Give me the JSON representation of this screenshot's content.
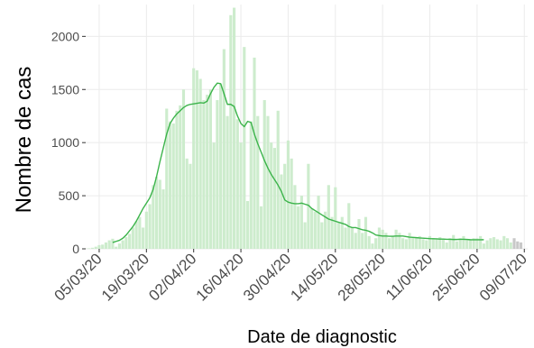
{
  "chart_data": {
    "type": "bar",
    "title": "",
    "xlabel": "Date de diagnostic",
    "ylabel": "Nombre de cas",
    "x_start": "2020-03-01",
    "x_end": "2020-07-10",
    "ylim": [
      0,
      2300
    ],
    "y_ticks": [
      0,
      500,
      1000,
      1500,
      2000
    ],
    "x_ticks": [
      "05/03/20",
      "19/03/20",
      "02/04/20",
      "16/04/20",
      "30/04/20",
      "14/05/20",
      "28/05/20",
      "11/06/20",
      "25/06/20",
      "09/07/20"
    ],
    "grid": true,
    "colors": {
      "bar": "#cdeccd",
      "bar_last": "#c8c8c8",
      "line": "#3cb44b",
      "grid": "#ebebeb",
      "axis_text": "#4d4d4d"
    },
    "series": [
      {
        "type": "bar",
        "x_start_date": "2020-03-01",
        "values": [
          3,
          5,
          10,
          20,
          35,
          40,
          60,
          80,
          95,
          20,
          50,
          80,
          110,
          140,
          200,
          260,
          300,
          200,
          350,
          420,
          600,
          680,
          650,
          560,
          1320,
          1200,
          1180,
          1300,
          1350,
          1500,
          850,
          800,
          1700,
          1680,
          1600,
          1400,
          1450,
          1500,
          1000,
          1400,
          1550,
          1880,
          1250,
          2200,
          2270,
          1220,
          1000,
          1900,
          450,
          1200,
          1800,
          1250,
          400,
          1400,
          1250,
          1000,
          950,
          1300,
          700,
          800,
          1020,
          850,
          600,
          400,
          500,
          250,
          800,
          380,
          350,
          500,
          250,
          350,
          600,
          300,
          580,
          250,
          300,
          200,
          430,
          200,
          150,
          280,
          150,
          300,
          120,
          50,
          100,
          200,
          180,
          150,
          100,
          120,
          180,
          150,
          100,
          90,
          150,
          110,
          100,
          120,
          90,
          80,
          120,
          100,
          90,
          110,
          95,
          60,
          100,
          130,
          70,
          100,
          120,
          80,
          90,
          100,
          100,
          120,
          50,
          80,
          100,
          110,
          90,
          80,
          120,
          100,
          60,
          100,
          70,
          60
        ]
      },
      {
        "type": "line",
        "x_start_date": "2020-03-09",
        "values": [
          60,
          70,
          80,
          100,
          130,
          170,
          210,
          260,
          320,
          380,
          430,
          480,
          560,
          680,
          820,
          950,
          1080,
          1180,
          1230,
          1270,
          1300,
          1330,
          1350,
          1360,
          1365,
          1370,
          1375,
          1372,
          1390,
          1460,
          1520,
          1560,
          1555,
          1460,
          1360,
          1360,
          1340,
          1250,
          1180,
          1150,
          1200,
          1190,
          1080,
          990,
          910,
          830,
          760,
          700,
          650,
          600,
          540,
          460,
          440,
          430,
          425,
          425,
          430,
          420,
          410,
          380,
          360,
          340,
          320,
          300,
          280,
          270,
          260,
          250,
          240,
          230,
          210,
          200,
          200,
          190,
          180,
          175,
          165,
          150,
          130,
          125,
          120,
          120,
          118,
          118,
          120,
          120,
          120,
          115,
          110,
          108,
          105,
          102,
          100,
          98,
          96,
          95,
          94,
          92,
          92,
          90,
          90,
          88,
          88,
          90,
          90,
          88,
          86,
          85,
          85,
          85,
          86
        ]
      }
    ]
  }
}
